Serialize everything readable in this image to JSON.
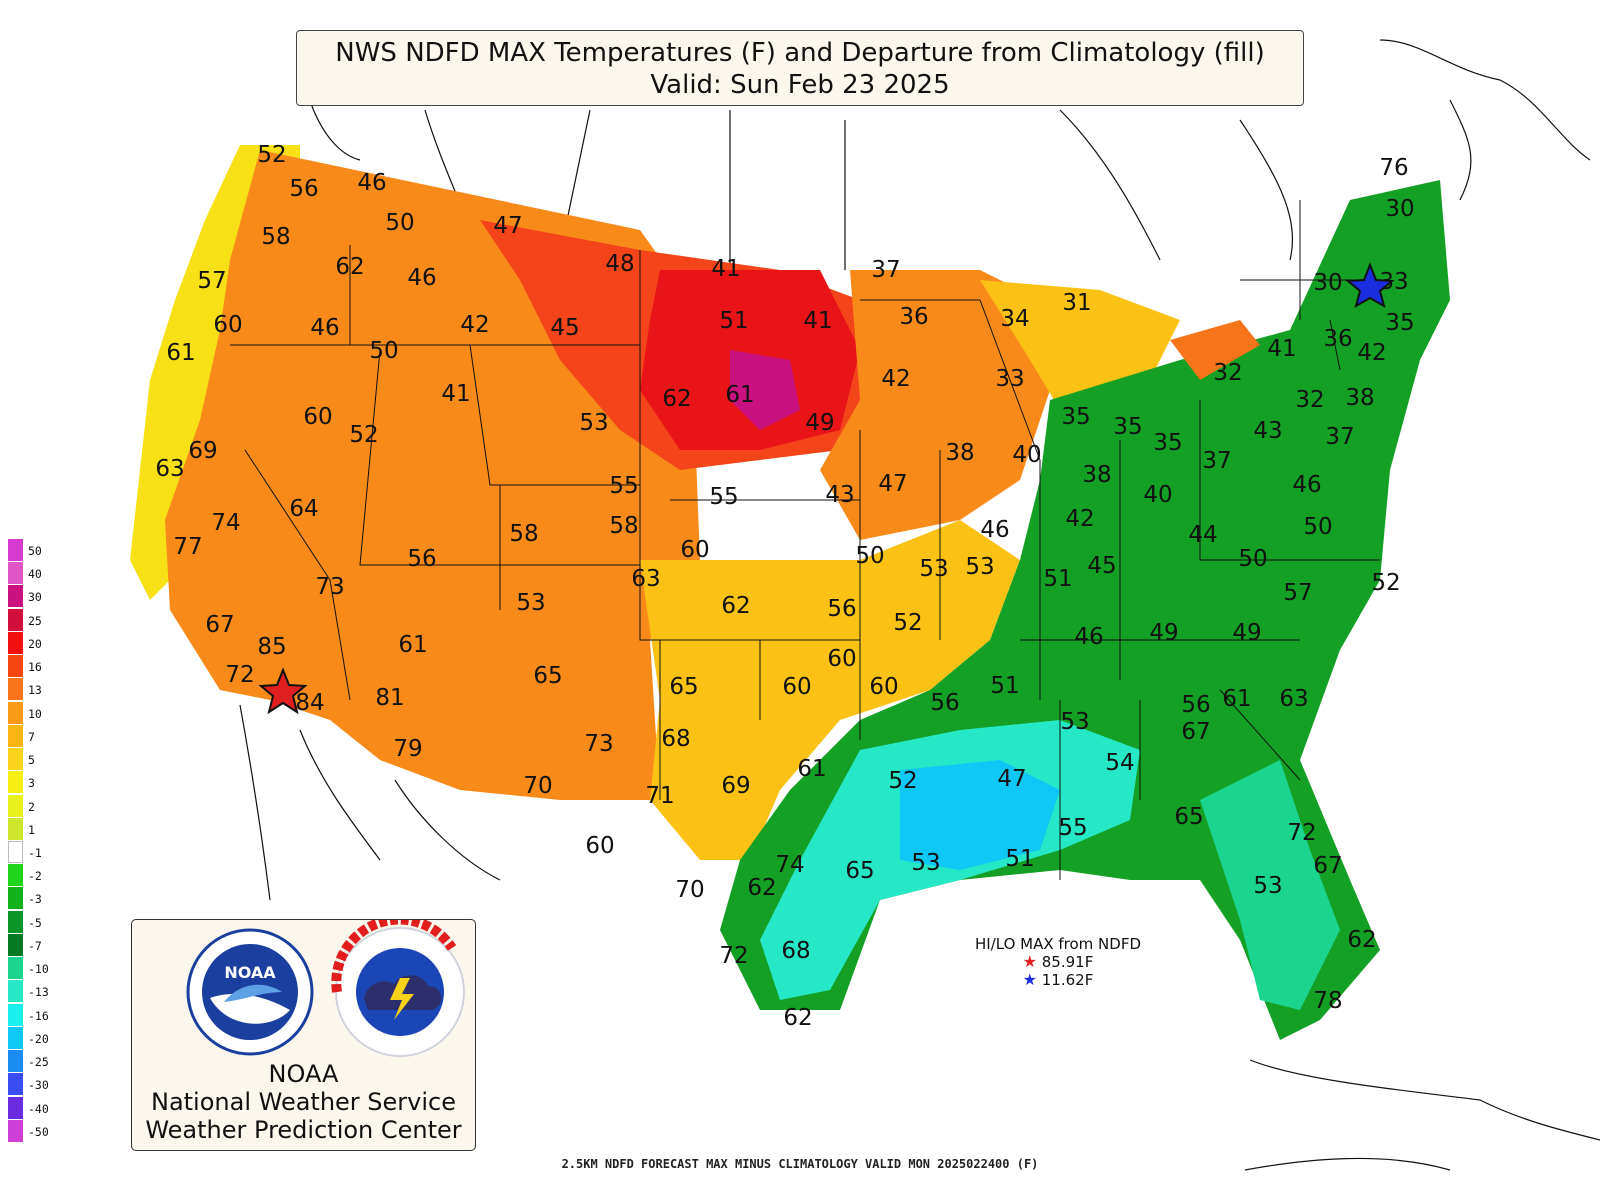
{
  "title": {
    "line1": "NWS NDFD MAX Temperatures (F) and Departure from Climatology (fill)",
    "line2": "Valid: Sun Feb 23 2025"
  },
  "legend": {
    "levels": [
      {
        "label": "50",
        "color": "#d63bcf"
      },
      {
        "label": "40",
        "color": "#e056c6"
      },
      {
        "label": "30",
        "color": "#c9127f"
      },
      {
        "label": "25",
        "color": "#d20f3c"
      },
      {
        "label": "20",
        "color": "#f10f0f"
      },
      {
        "label": "16",
        "color": "#f4440f"
      },
      {
        "label": "13",
        "color": "#f8741a"
      },
      {
        "label": "10",
        "color": "#fa9a16"
      },
      {
        "label": "7",
        "color": "#fbb515"
      },
      {
        "label": "5",
        "color": "#fbd21c"
      },
      {
        "label": "3",
        "color": "#f7ee12"
      },
      {
        "label": "2",
        "color": "#e9f01c"
      },
      {
        "label": "1",
        "color": "#cde62b"
      },
      {
        "label": "-1",
        "color": "#ffffff"
      },
      {
        "label": "-2",
        "color": "#20d41c"
      },
      {
        "label": "-3",
        "color": "#12b21c"
      },
      {
        "label": "-5",
        "color": "#0b9528"
      },
      {
        "label": "-7",
        "color": "#087a24"
      },
      {
        "label": "-10",
        "color": "#1bd58e"
      },
      {
        "label": "-13",
        "color": "#27e8c6"
      },
      {
        "label": "-16",
        "color": "#19f0ee"
      },
      {
        "label": "-20",
        "color": "#10c8f5"
      },
      {
        "label": "-25",
        "color": "#1b8cf2"
      },
      {
        "label": "-30",
        "color": "#3a4df2"
      },
      {
        "label": "-40",
        "color": "#6a2ae0"
      },
      {
        "label": "-50",
        "color": "#ce3fd8"
      }
    ]
  },
  "logos": {
    "noaa_icon": "noaa-logo-icon",
    "nws_icon": "nws-logo-icon",
    "org_line1": "NOAA",
    "org_line2": "National Weather Service",
    "org_line3": "Weather Prediction Center"
  },
  "hilo": {
    "title": "HI/LO MAX from NDFD",
    "hi": "85.91F",
    "lo": "11.62F",
    "hi_color": "#e02020",
    "lo_color": "#1a2ee0"
  },
  "footer": "2.5KM NDFD FORECAST MAX MINUS CLIMATOLOGY VALID MON 2025022400 (F)",
  "temperatures": [
    "52",
    "56",
    "46",
    "50",
    "47",
    "58",
    "62",
    "46",
    "57",
    "60",
    "61",
    "46",
    "50",
    "42",
    "45",
    "48",
    "41",
    "51",
    "41",
    "37",
    "36",
    "34",
    "31",
    "62",
    "61",
    "49",
    "42",
    "33",
    "60",
    "52",
    "41",
    "53",
    "69",
    "63",
    "74",
    "77",
    "64",
    "56",
    "73",
    "67",
    "85",
    "72",
    "84",
    "61",
    "81",
    "79",
    "55",
    "55",
    "43",
    "47",
    "38",
    "40",
    "35",
    "35",
    "35",
    "38",
    "40",
    "37",
    "58",
    "58",
    "60",
    "50",
    "53",
    "53",
    "46",
    "42",
    "44",
    "50",
    "63",
    "62",
    "56",
    "52",
    "51",
    "45",
    "46",
    "49",
    "49",
    "57",
    "53",
    "65",
    "65",
    "60",
    "60",
    "60",
    "56",
    "51",
    "53",
    "56",
    "61",
    "63",
    "73",
    "68",
    "70",
    "71",
    "69",
    "61",
    "52",
    "47",
    "54",
    "55",
    "65",
    "67",
    "60",
    "70",
    "74",
    "62",
    "65",
    "53",
    "51",
    "53",
    "72",
    "67",
    "72",
    "68",
    "62",
    "62",
    "78",
    "76",
    "30",
    "30",
    "33",
    "36",
    "35",
    "42",
    "41",
    "32",
    "32",
    "38",
    "43",
    "37",
    "46",
    "50",
    "52",
    "50"
  ]
}
